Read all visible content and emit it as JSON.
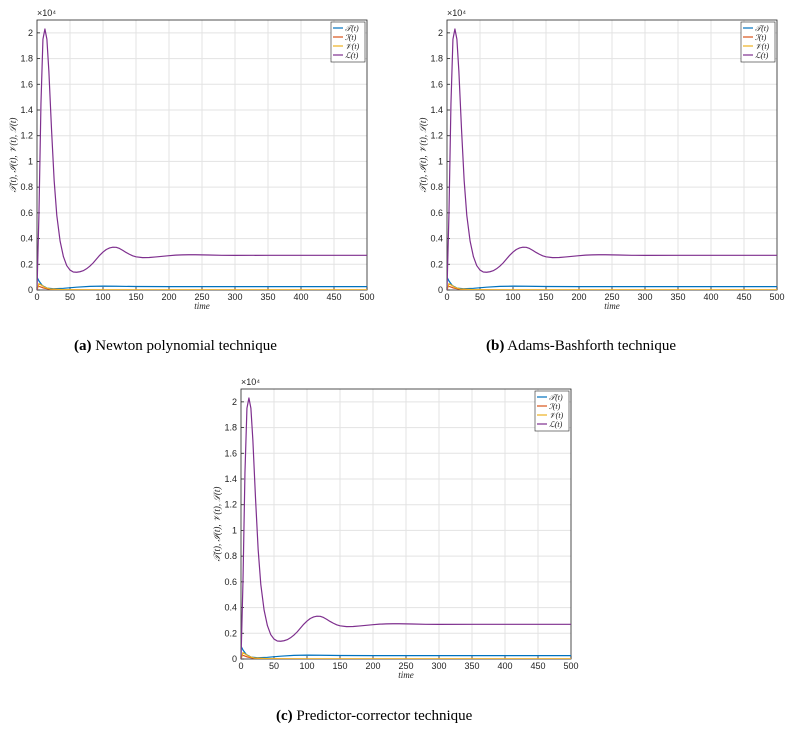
{
  "captions": [
    {
      "tag": "(a)",
      "text": "Newton polynomial technique"
    },
    {
      "tag": "(b)",
      "text": "Adams-Bashforth technique"
    },
    {
      "tag": "(c)",
      "text": "Predictor-corrector technique"
    }
  ],
  "chart_data": [
    {
      "type": "line",
      "panel": "a",
      "xlabel": "time",
      "ylabel": "𝒯(t), ℐ(t), 𝒱(t), ℒ(t)",
      "xlim": [
        0,
        500
      ],
      "ylim": [
        0,
        21000
      ],
      "y_exponent_label": "×10⁴",
      "xticks": [
        0,
        50,
        100,
        150,
        200,
        250,
        300,
        350,
        400,
        450,
        500
      ],
      "yticks": [
        0,
        2000,
        4000,
        6000,
        8000,
        10000,
        12000,
        14000,
        16000,
        18000,
        20000
      ],
      "ytick_labels": [
        "0",
        "0.2",
        "0.4",
        "0.6",
        "0.8",
        "1",
        "1.2",
        "1.4",
        "1.6",
        "1.8",
        "2"
      ],
      "grid": true,
      "legend_position": "top-right",
      "series": [
        {
          "name": "𝒯(t)",
          "color": "#0072BD",
          "x": [
            0,
            3,
            8,
            15,
            25,
            40,
            60,
            80,
            100,
            120,
            150,
            200,
            250,
            300,
            400,
            500
          ],
          "y": [
            1000,
            700,
            350,
            150,
            100,
            130,
            220,
            280,
            300,
            290,
            270,
            260,
            260,
            260,
            260,
            260
          ]
        },
        {
          "name": "ℐ(t)",
          "color": "#D95319",
          "x": [
            0,
            2,
            5,
            10,
            20,
            40,
            60,
            100,
            200,
            300,
            400,
            500
          ],
          "y": [
            0,
            300,
            250,
            150,
            60,
            20,
            10,
            5,
            5,
            5,
            5,
            5
          ]
        },
        {
          "name": "𝒱(t)",
          "color": "#EDB120",
          "x": [
            0,
            3,
            6,
            12,
            20,
            40,
            60,
            100,
            200,
            300,
            400,
            500
          ],
          "y": [
            0,
            500,
            400,
            200,
            80,
            30,
            15,
            10,
            10,
            10,
            10,
            10
          ]
        },
        {
          "name": "ℒ(t)",
          "color": "#7E2F8E",
          "x": [
            0,
            3,
            6,
            9,
            12,
            15,
            18,
            22,
            26,
            30,
            35,
            40,
            45,
            50,
            55,
            60,
            65,
            70,
            75,
            80,
            85,
            90,
            95,
            100,
            105,
            110,
            115,
            120,
            125,
            130,
            135,
            140,
            145,
            150,
            160,
            170,
            180,
            190,
            200,
            210,
            220,
            230,
            240,
            250,
            260,
            280,
            300,
            350,
            400,
            450,
            500
          ],
          "y": [
            0,
            6000,
            14500,
            19500,
            20300,
            19500,
            17000,
            12500,
            8500,
            5800,
            3800,
            2600,
            1900,
            1550,
            1400,
            1380,
            1420,
            1500,
            1650,
            1850,
            2100,
            2400,
            2700,
            2950,
            3150,
            3270,
            3330,
            3320,
            3230,
            3080,
            2920,
            2780,
            2660,
            2580,
            2520,
            2530,
            2570,
            2620,
            2670,
            2710,
            2730,
            2740,
            2740,
            2730,
            2720,
            2700,
            2690,
            2700,
            2700,
            2700,
            2700
          ]
        }
      ]
    },
    {
      "type": "line",
      "panel": "b",
      "xlabel": "time",
      "ylabel": "𝒯(t), ℐ(t), 𝒱(t), ℒ(t)",
      "xlim": [
        0,
        500
      ],
      "ylim": [
        0,
        21000
      ],
      "y_exponent_label": "×10⁴",
      "xticks": [
        0,
        50,
        100,
        150,
        200,
        250,
        300,
        350,
        400,
        450,
        500
      ],
      "yticks": [
        0,
        2000,
        4000,
        6000,
        8000,
        10000,
        12000,
        14000,
        16000,
        18000,
        20000
      ],
      "ytick_labels": [
        "0",
        "0.2",
        "0.4",
        "0.6",
        "0.8",
        "1",
        "1.2",
        "1.4",
        "1.6",
        "1.8",
        "2"
      ],
      "grid": true,
      "legend_position": "top-right",
      "series": [
        {
          "name": "𝒯(t)",
          "color": "#0072BD",
          "x": [
            0,
            3,
            8,
            15,
            25,
            40,
            60,
            80,
            100,
            120,
            150,
            200,
            250,
            300,
            400,
            500
          ],
          "y": [
            1000,
            700,
            350,
            150,
            100,
            130,
            220,
            280,
            300,
            290,
            270,
            260,
            260,
            260,
            260,
            260
          ]
        },
        {
          "name": "ℐ(t)",
          "color": "#D95319",
          "x": [
            0,
            2,
            5,
            10,
            20,
            40,
            60,
            100,
            200,
            300,
            400,
            500
          ],
          "y": [
            0,
            300,
            250,
            150,
            60,
            20,
            10,
            5,
            5,
            5,
            5,
            5
          ]
        },
        {
          "name": "𝒱(t)",
          "color": "#EDB120",
          "x": [
            0,
            3,
            6,
            12,
            20,
            40,
            60,
            100,
            200,
            300,
            400,
            500
          ],
          "y": [
            0,
            500,
            400,
            200,
            80,
            30,
            15,
            10,
            10,
            10,
            10,
            10
          ]
        },
        {
          "name": "ℒ(t)",
          "color": "#7E2F8E",
          "x": [
            0,
            3,
            6,
            9,
            12,
            15,
            18,
            22,
            26,
            30,
            35,
            40,
            45,
            50,
            55,
            60,
            65,
            70,
            75,
            80,
            85,
            90,
            95,
            100,
            105,
            110,
            115,
            120,
            125,
            130,
            135,
            140,
            145,
            150,
            160,
            170,
            180,
            190,
            200,
            210,
            220,
            230,
            240,
            250,
            260,
            280,
            300,
            350,
            400,
            450,
            500
          ],
          "y": [
            0,
            6000,
            14500,
            19500,
            20300,
            19500,
            17000,
            12500,
            8500,
            5800,
            3800,
            2600,
            1900,
            1550,
            1400,
            1380,
            1420,
            1500,
            1650,
            1850,
            2100,
            2400,
            2700,
            2950,
            3150,
            3270,
            3330,
            3320,
            3230,
            3080,
            2920,
            2780,
            2660,
            2580,
            2520,
            2530,
            2570,
            2620,
            2670,
            2710,
            2730,
            2740,
            2740,
            2730,
            2720,
            2700,
            2690,
            2700,
            2700,
            2700,
            2700
          ]
        }
      ]
    },
    {
      "type": "line",
      "panel": "c",
      "xlabel": "time",
      "ylabel": "𝒯(t), ℐ(t), 𝒱(t), ℒ(t)",
      "xlim": [
        0,
        500
      ],
      "ylim": [
        0,
        21000
      ],
      "y_exponent_label": "×10⁴",
      "xticks": [
        0,
        50,
        100,
        150,
        200,
        250,
        300,
        350,
        400,
        450,
        500
      ],
      "yticks": [
        0,
        2000,
        4000,
        6000,
        8000,
        10000,
        12000,
        14000,
        16000,
        18000,
        20000
      ],
      "ytick_labels": [
        "0",
        "0.2",
        "0.4",
        "0.6",
        "0.8",
        "1",
        "1.2",
        "1.4",
        "1.6",
        "1.8",
        "2"
      ],
      "grid": true,
      "legend_position": "top-right",
      "series": [
        {
          "name": "𝒯(t)",
          "color": "#0072BD",
          "x": [
            0,
            3,
            8,
            15,
            25,
            40,
            60,
            80,
            100,
            120,
            150,
            200,
            250,
            300,
            400,
            500
          ],
          "y": [
            1000,
            700,
            350,
            150,
            100,
            130,
            220,
            280,
            300,
            290,
            270,
            260,
            260,
            260,
            260,
            260
          ]
        },
        {
          "name": "ℐ(t)",
          "color": "#D95319",
          "x": [
            0,
            2,
            5,
            10,
            20,
            40,
            60,
            100,
            200,
            300,
            400,
            500
          ],
          "y": [
            0,
            300,
            250,
            150,
            60,
            20,
            10,
            5,
            5,
            5,
            5,
            5
          ]
        },
        {
          "name": "𝒱(t)",
          "color": "#EDB120",
          "x": [
            0,
            3,
            6,
            12,
            20,
            40,
            60,
            100,
            200,
            300,
            400,
            500
          ],
          "y": [
            0,
            500,
            400,
            200,
            80,
            30,
            15,
            10,
            10,
            10,
            10,
            10
          ]
        },
        {
          "name": "ℒ(t)",
          "color": "#7E2F8E",
          "x": [
            0,
            3,
            6,
            9,
            12,
            15,
            18,
            22,
            26,
            30,
            35,
            40,
            45,
            50,
            55,
            60,
            65,
            70,
            75,
            80,
            85,
            90,
            95,
            100,
            105,
            110,
            115,
            120,
            125,
            130,
            135,
            140,
            145,
            150,
            160,
            170,
            180,
            190,
            200,
            210,
            220,
            230,
            240,
            250,
            260,
            280,
            300,
            350,
            400,
            450,
            500
          ],
          "y": [
            0,
            6000,
            14500,
            19500,
            20300,
            19500,
            17000,
            12500,
            8500,
            5800,
            3800,
            2600,
            1900,
            1550,
            1400,
            1380,
            1420,
            1500,
            1650,
            1850,
            2100,
            2400,
            2700,
            2950,
            3150,
            3270,
            3330,
            3320,
            3230,
            3080,
            2920,
            2780,
            2660,
            2580,
            2520,
            2530,
            2570,
            2620,
            2670,
            2710,
            2730,
            2740,
            2740,
            2730,
            2720,
            2700,
            2690,
            2700,
            2700,
            2700,
            2700
          ]
        }
      ]
    }
  ]
}
